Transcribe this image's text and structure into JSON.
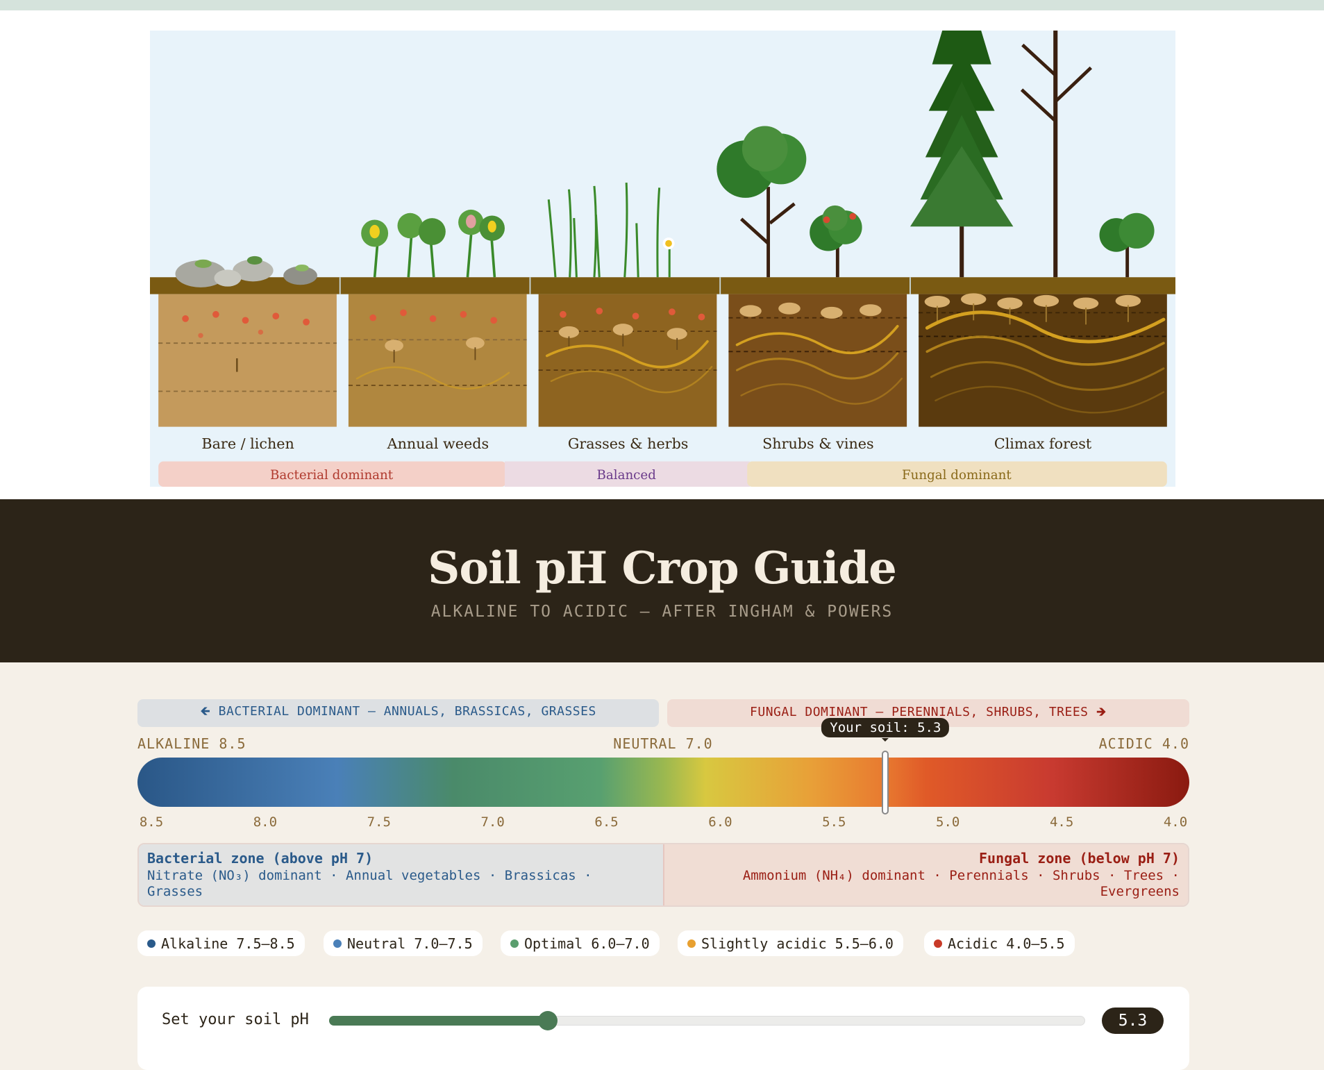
{
  "illustration": {
    "stages": [
      "Bare / lichen",
      "Annual weeds",
      "Grasses & herbs",
      "Shrubs & vines",
      "Climax forest"
    ],
    "zones": [
      {
        "label": "Bacterial dominant",
        "color": "#b03a2e",
        "bg": "#f4d0c8"
      },
      {
        "label": "Balanced",
        "color": "#6a3a8a",
        "bg": "#ecdbe3"
      },
      {
        "label": "Fungal dominant",
        "color": "#8a6a1a",
        "bg": "#f0e0c0"
      }
    ]
  },
  "header": {
    "title": "Soil pH Crop Guide",
    "subtitle": "ALKALINE TO ACIDIC — AFTER INGHAM & POWERS"
  },
  "scale": {
    "banner_left": "🡸 BACTERIAL DOMINANT — ANNUALS, BRASSICAS, GRASSES",
    "banner_right": "FUNGAL DOMINANT — PERENNIALS, SHRUBS, TREES 🡺",
    "label_left": "ALKALINE 8.5",
    "label_mid": "NEUTRAL 7.0",
    "label_right": "ACIDIC 4.0",
    "tooltip": "Your soil: 5.3",
    "ph_value": 5.3,
    "ph_max": 8.5,
    "ph_min": 4.0,
    "ticks": [
      "8.5",
      "8.0",
      "7.5",
      "7.0",
      "6.5",
      "6.0",
      "5.5",
      "5.0",
      "4.5",
      "4.0"
    ]
  },
  "zones": {
    "bacterial_title": "Bacterial zone (above pH 7)",
    "bacterial_text": "Nitrate (NO₃) dominant · Annual vegetables · Brassicas · Grasses",
    "fungal_title": "Fungal zone (below pH 7)",
    "fungal_text": "Ammonium (NH₄) dominant · Perennials · Shrubs · Trees · Evergreens"
  },
  "legend": [
    {
      "label": "Alkaline 7.5–8.5",
      "color": "#2a5a8a"
    },
    {
      "label": "Neutral 7.0–7.5",
      "color": "#4a80b8"
    },
    {
      "label": "Optimal 6.0–7.0",
      "color": "#5a9e6e"
    },
    {
      "label": "Slightly acidic 5.5–6.0",
      "color": "#e8a030"
    },
    {
      "label": "Acidic 4.0–5.5",
      "color": "#c83a28"
    }
  ],
  "slider": {
    "label": "Set your soil pH",
    "value": 5.3,
    "min": 4.0,
    "max": 8.5,
    "value_text": "5.3",
    "accent": "#4a7a55"
  }
}
